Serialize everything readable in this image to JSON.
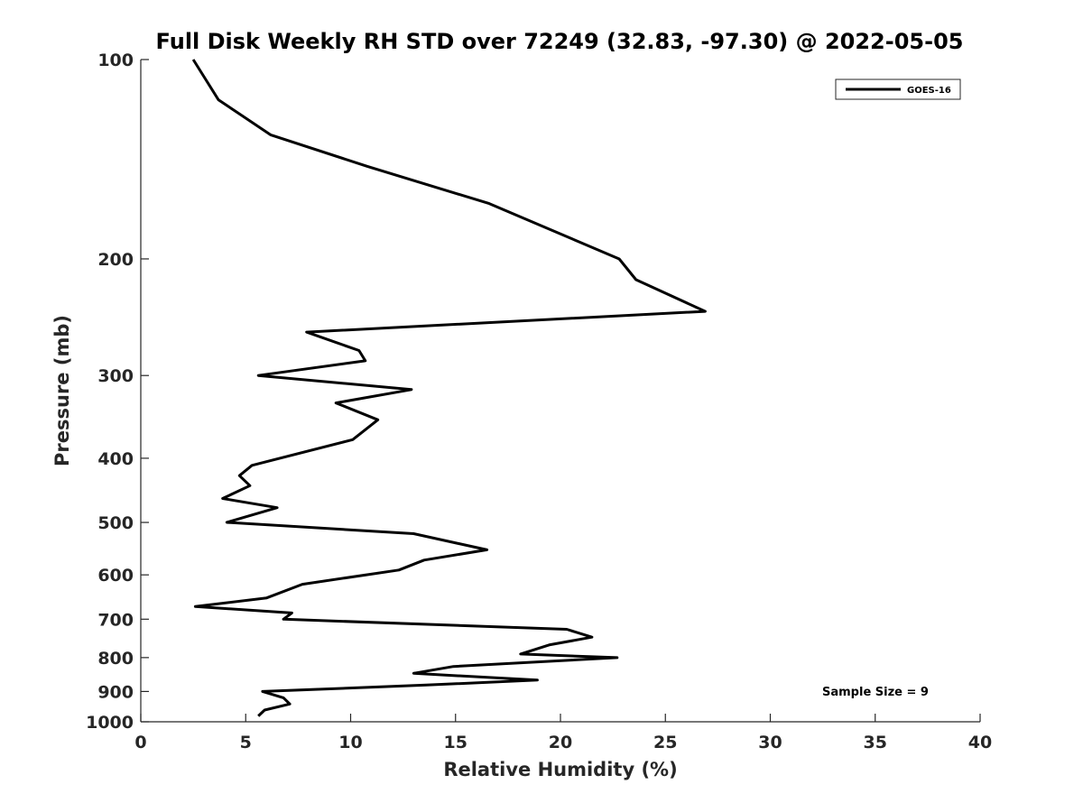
{
  "chart_data": {
    "type": "line",
    "title": "Full Disk Weekly RH STD over 72249 (32.83, -97.30) @ 2022-05-05",
    "xlabel": "Relative Humidity (%)",
    "ylabel": "Pressure (mb)",
    "xlim": [
      0,
      40
    ],
    "ylim": [
      1000,
      100
    ],
    "yscale": "log",
    "y_reversed": true,
    "x_ticks": [
      "0",
      "5",
      "10",
      "15",
      "20",
      "25",
      "30",
      "35",
      "40"
    ],
    "y_ticks": [
      "100",
      "200",
      "300",
      "400",
      "500",
      "600",
      "700",
      "800",
      "900",
      "1000"
    ],
    "grid": false,
    "legend_position": "top-right",
    "annotation": "Sample Size = 9",
    "series": [
      {
        "name": "GOES-16",
        "color": "#000000",
        "points": [
          [
            2.5,
            100
          ],
          [
            3.7,
            115
          ],
          [
            6.2,
            130
          ],
          [
            10.8,
            145
          ],
          [
            16.6,
            165
          ],
          [
            22.8,
            200
          ],
          [
            23.6,
            215
          ],
          [
            26.9,
            240
          ],
          [
            7.9,
            258
          ],
          [
            10.4,
            275
          ],
          [
            10.7,
            285
          ],
          [
            5.6,
            300
          ],
          [
            12.9,
            315
          ],
          [
            9.3,
            330
          ],
          [
            11.3,
            350
          ],
          [
            10.1,
            375
          ],
          [
            5.3,
            410
          ],
          [
            4.7,
            425
          ],
          [
            5.2,
            440
          ],
          [
            3.9,
            460
          ],
          [
            6.5,
            475
          ],
          [
            4.1,
            500
          ],
          [
            13.0,
            520
          ],
          [
            16.5,
            550
          ],
          [
            13.5,
            570
          ],
          [
            12.3,
            590
          ],
          [
            7.7,
            620
          ],
          [
            6.0,
            650
          ],
          [
            2.6,
            670
          ],
          [
            7.2,
            685
          ],
          [
            6.8,
            700
          ],
          [
            20.3,
            725
          ],
          [
            21.5,
            745
          ],
          [
            19.5,
            765
          ],
          [
            18.1,
            790
          ],
          [
            22.7,
            800
          ],
          [
            14.9,
            825
          ],
          [
            13.0,
            845
          ],
          [
            18.9,
            865
          ],
          [
            13.6,
            880
          ],
          [
            5.8,
            900
          ],
          [
            6.8,
            920
          ],
          [
            7.1,
            940
          ],
          [
            5.9,
            960
          ],
          [
            5.6,
            980
          ]
        ]
      }
    ]
  }
}
